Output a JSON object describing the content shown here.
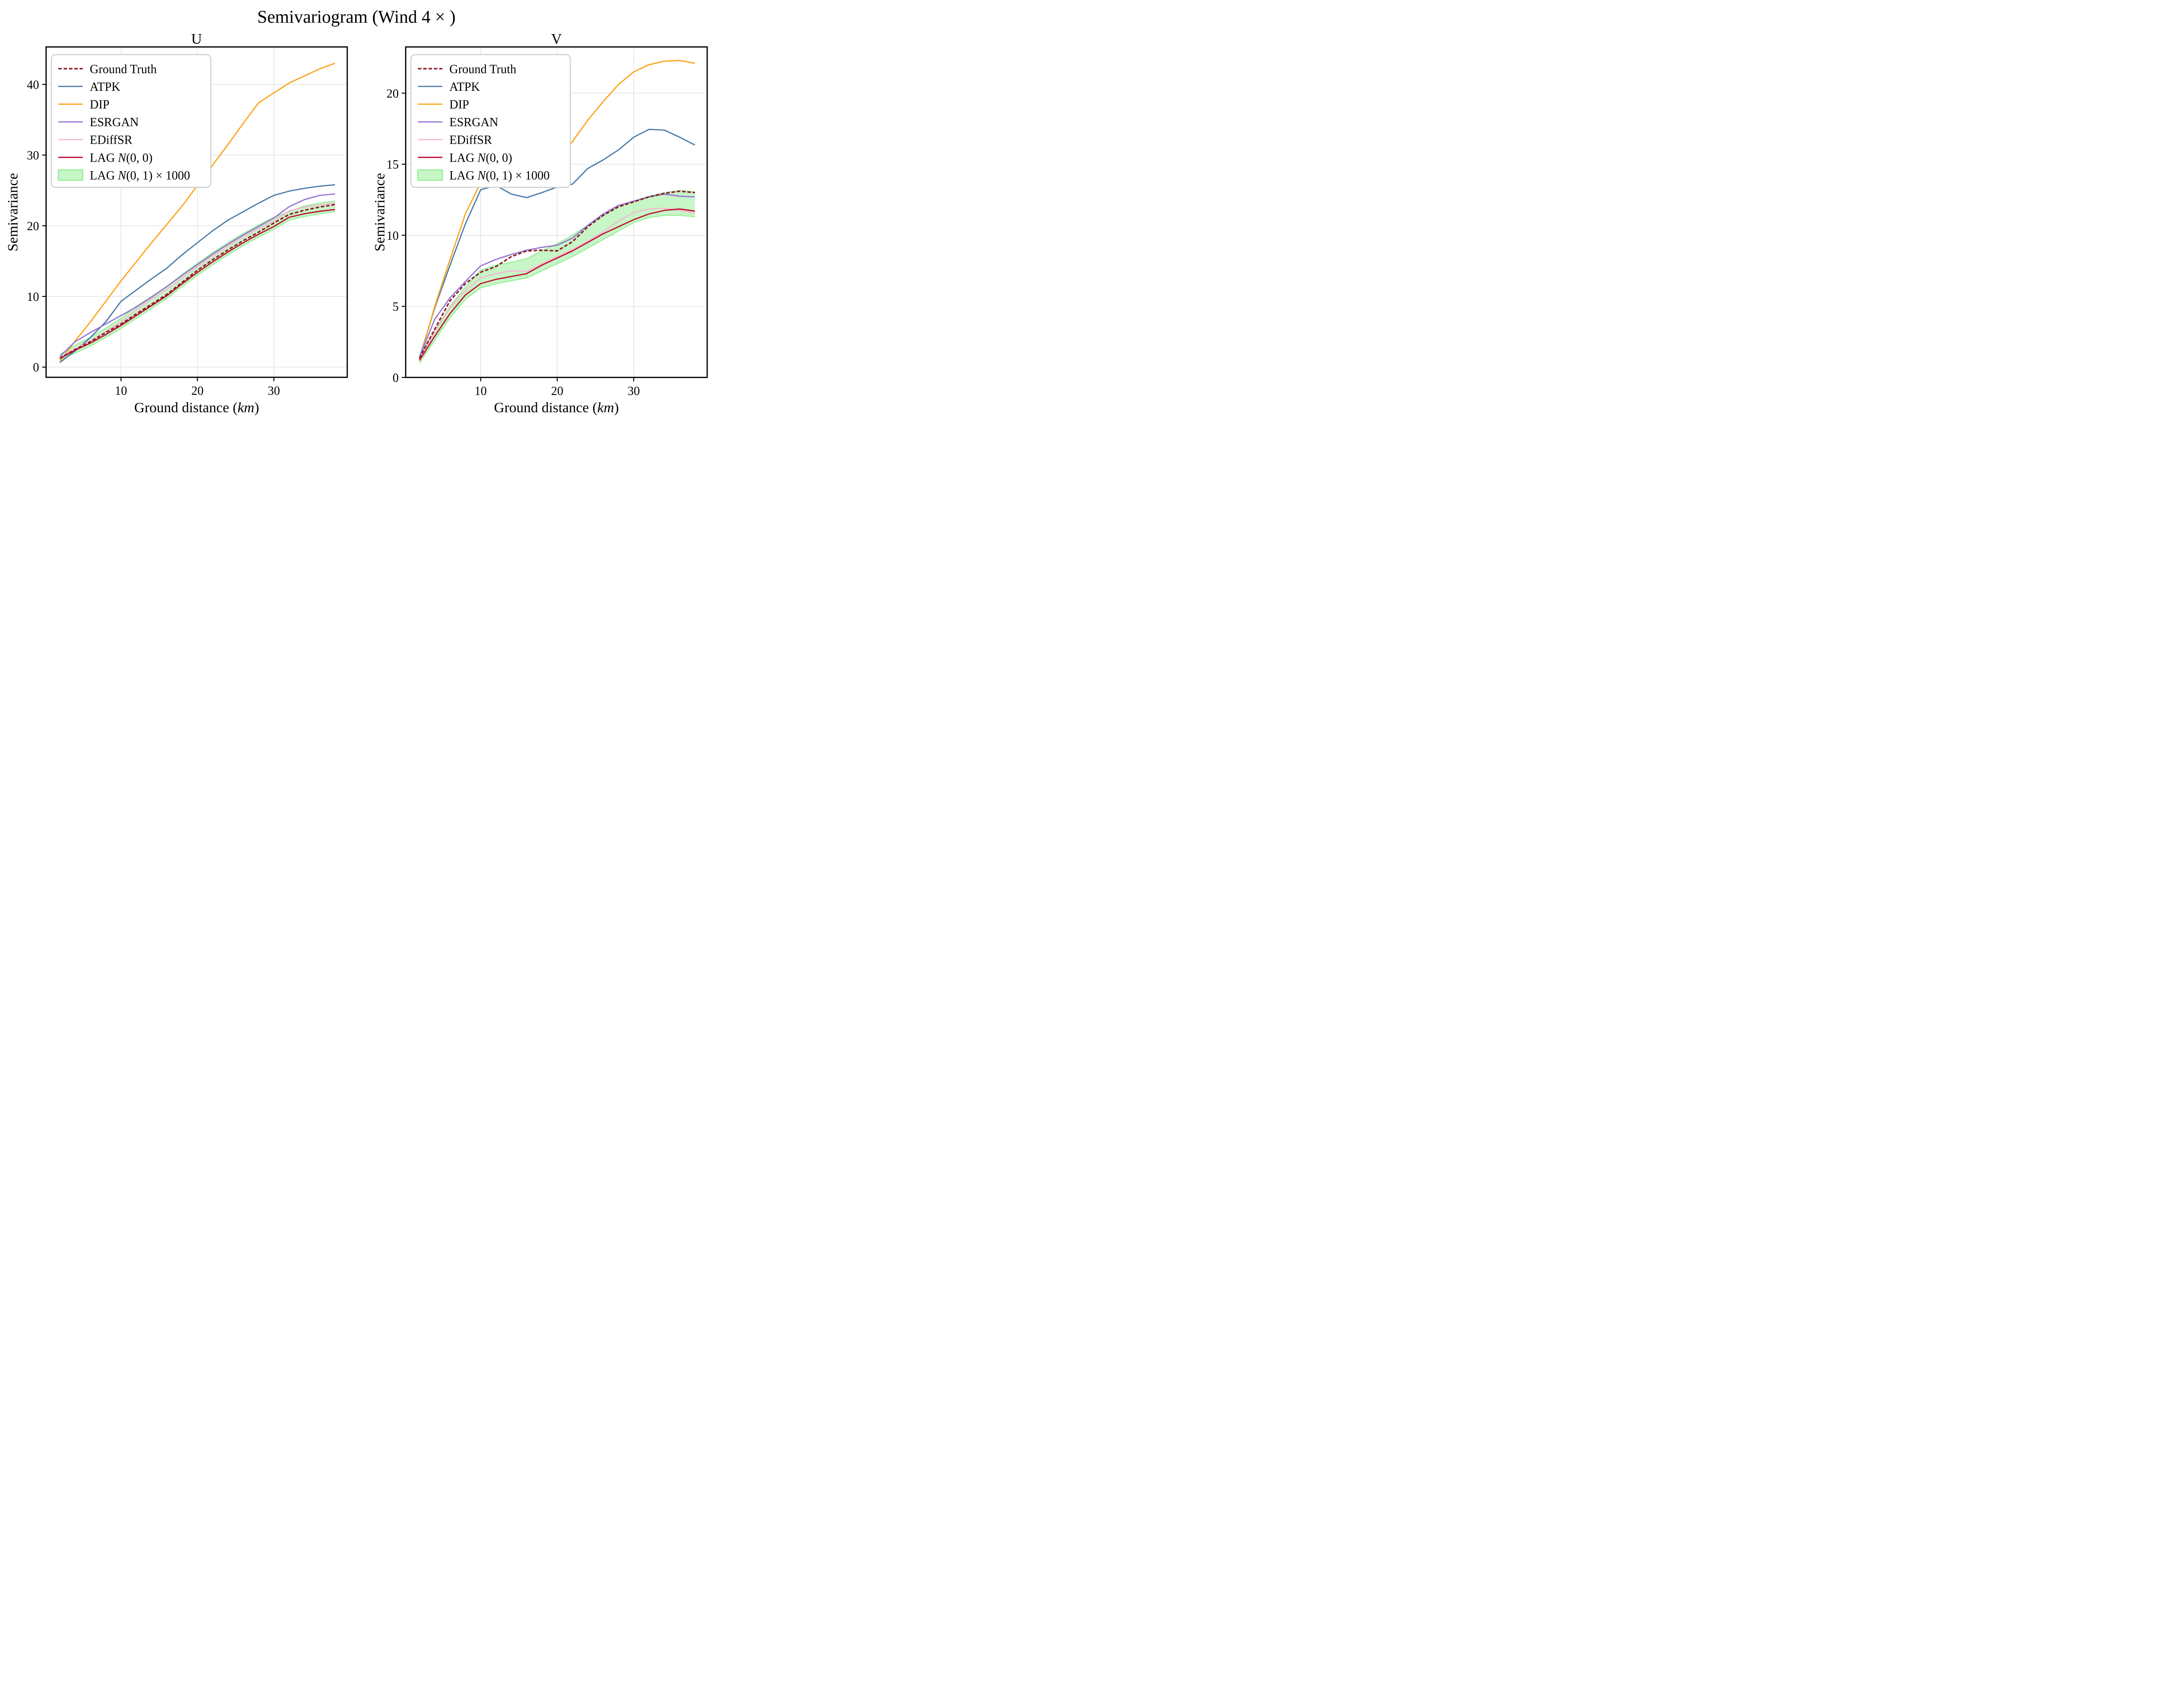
{
  "figure": {
    "suptitle": "Semivariogram (Wind 4 × )",
    "background": "#ffffff",
    "axis_color": "#000000",
    "grid_color": "#d9d9d9",
    "legend_border_color": "#cfcfcf"
  },
  "legend": {
    "position": "upper left",
    "entries": [
      {
        "label": "Ground Truth",
        "parts": [
          [
            "Ground Truth",
            false
          ]
        ],
        "type": "line",
        "dashed": true,
        "color": "#8b1a2b"
      },
      {
        "label": "ATPK",
        "parts": [
          [
            "ATPK",
            false
          ]
        ],
        "type": "line",
        "dashed": false,
        "color": "#4a7bab"
      },
      {
        "label": "DIP",
        "parts": [
          [
            "DIP",
            false
          ]
        ],
        "type": "line",
        "dashed": false,
        "color": "#ffa318"
      },
      {
        "label": "ESRGAN",
        "parts": [
          [
            "ESRGAN",
            false
          ]
        ],
        "type": "line",
        "dashed": false,
        "color": "#9672d4"
      },
      {
        "label": "EDiffSR",
        "parts": [
          [
            "EDiffSR",
            false
          ]
        ],
        "type": "line",
        "dashed": false,
        "color": "#f7b8d4"
      },
      {
        "label": "LAG N(0, 0)",
        "parts": [
          [
            "LAG ",
            false
          ],
          [
            "N",
            true
          ],
          [
            "(0, 0)",
            false
          ]
        ],
        "type": "line",
        "dashed": false,
        "color": "#bf0f30"
      },
      {
        "label": "LAG N(0, 1) × 1000",
        "parts": [
          [
            "LAG ",
            false
          ],
          [
            "N",
            true
          ],
          [
            "(0, 1) × 1000",
            false
          ]
        ],
        "type": "patch",
        "dashed": false,
        "color": "#90ee90"
      }
    ]
  },
  "chart_data": [
    {
      "type": "line",
      "title": "U",
      "xlabel": "Ground distance (km)",
      "xlabel_parts": [
        [
          "Ground distance (",
          false
        ],
        [
          "km",
          true
        ],
        [
          ")",
          false
        ]
      ],
      "ylabel": "Semivariance",
      "xlim": [
        0.2,
        39.6
      ],
      "ylim": [
        -1.44,
        45.3
      ],
      "xticks": [
        10,
        20,
        30
      ],
      "yticks": [
        0,
        10,
        20,
        30,
        40
      ],
      "grid": true,
      "x": [
        2,
        4,
        6,
        8,
        10,
        12,
        14,
        16,
        18,
        20,
        22,
        24,
        26,
        28,
        30,
        32,
        34,
        36,
        38
      ],
      "series": [
        {
          "name": "Ground Truth",
          "color": "#8b1a2b",
          "dashed": true,
          "values": [
            1.25,
            2.5,
            3.6,
            4.9,
            6.1,
            7.55,
            8.9,
            10.3,
            12.0,
            13.7,
            15.2,
            16.6,
            17.9,
            19.1,
            20.4,
            21.6,
            22.2,
            22.65,
            23.0
          ]
        },
        {
          "name": "ATPK",
          "color": "#4a7bab",
          "dashed": false,
          "values": [
            0.65,
            2.3,
            4.2,
            6.4,
            9.3,
            10.9,
            12.5,
            14.0,
            15.9,
            17.6,
            19.3,
            20.8,
            22.0,
            23.2,
            24.3,
            24.9,
            25.3,
            25.6,
            25.8
          ]
        },
        {
          "name": "DIP",
          "color": "#ffa318",
          "dashed": false,
          "values": [
            0.8,
            3.7,
            6.4,
            9.3,
            12.2,
            14.9,
            17.6,
            20.2,
            22.8,
            25.7,
            28.6,
            31.5,
            34.5,
            37.4,
            38.8,
            40.2,
            41.2,
            42.2,
            43.0
          ]
        },
        {
          "name": "ESRGAN",
          "color": "#9672d4",
          "dashed": false,
          "values": [
            1.5,
            3.6,
            4.9,
            6.1,
            7.3,
            8.5,
            9.9,
            11.4,
            13.0,
            14.5,
            16.0,
            17.4,
            18.7,
            19.9,
            21.1,
            22.7,
            23.7,
            24.3,
            24.5
          ]
        },
        {
          "name": "EDiffSR",
          "color": "#f7b8d4",
          "dashed": false,
          "values": [
            1.35,
            2.6,
            3.7,
            5.0,
            6.4,
            8.1,
            9.6,
            11.0,
            12.6,
            14.2,
            15.7,
            17.1,
            18.4,
            19.6,
            20.7,
            22.1,
            22.6,
            22.95,
            23.2
          ]
        },
        {
          "name": "LAG N(0, 0)",
          "color": "#bf0f30",
          "dashed": false,
          "values": [
            1.2,
            2.4,
            3.4,
            4.6,
            5.9,
            7.3,
            8.7,
            10.1,
            11.8,
            13.4,
            14.9,
            16.3,
            17.6,
            18.8,
            19.9,
            21.2,
            21.7,
            22.05,
            22.3
          ]
        }
      ],
      "band": {
        "name": "LAG N(0, 1) × 1000",
        "fill": "#90ee90",
        "fill_opacity": 0.5,
        "edge": "#90ee90",
        "upper": [
          1.8,
          3.1,
          4.2,
          5.5,
          6.9,
          8.6,
          10.0,
          11.4,
          13.1,
          14.7,
          16.2,
          17.6,
          18.9,
          20.1,
          21.2,
          22.0,
          22.8,
          23.2,
          23.5
        ],
        "lower": [
          1.0,
          2.0,
          3.0,
          4.2,
          5.5,
          6.9,
          8.3,
          9.7,
          11.4,
          13.0,
          14.5,
          15.9,
          17.2,
          18.4,
          19.5,
          20.8,
          21.3,
          21.7,
          22.0
        ]
      }
    },
    {
      "type": "line",
      "title": "V",
      "xlabel": "Ground distance (km)",
      "xlabel_parts": [
        [
          "Ground distance (",
          false
        ],
        [
          "km",
          true
        ],
        [
          ")",
          false
        ]
      ],
      "ylabel": "Semivariance",
      "xlim": [
        0.2,
        39.6
      ],
      "ylim": [
        0,
        23.25
      ],
      "xticks": [
        10,
        20,
        30
      ],
      "yticks": [
        0,
        5,
        10,
        15,
        20
      ],
      "grid": true,
      "x": [
        2,
        4,
        6,
        8,
        10,
        12,
        14,
        16,
        18,
        20,
        22,
        24,
        26,
        28,
        30,
        32,
        34,
        36,
        38
      ],
      "series": [
        {
          "name": "Ground Truth",
          "color": "#8b1a2b",
          "dashed": true,
          "values": [
            1.35,
            3.4,
            5.4,
            6.6,
            7.4,
            7.8,
            8.5,
            8.9,
            8.95,
            8.9,
            9.55,
            10.6,
            11.4,
            12.0,
            12.35,
            12.7,
            12.95,
            13.1,
            13.0
          ]
        },
        {
          "name": "ATPK",
          "color": "#4a7bab",
          "dashed": false,
          "values": [
            1.35,
            4.9,
            7.9,
            10.8,
            13.2,
            13.5,
            12.9,
            12.65,
            13.0,
            13.4,
            13.6,
            14.7,
            15.3,
            16.0,
            16.9,
            17.45,
            17.4,
            16.9,
            16.35
          ]
        },
        {
          "name": "DIP",
          "color": "#ffa318",
          "dashed": false,
          "values": [
            1.2,
            5.0,
            8.3,
            11.5,
            13.7,
            14.2,
            14.45,
            14.7,
            15.0,
            15.3,
            16.6,
            18.1,
            19.4,
            20.6,
            21.5,
            22.0,
            22.25,
            22.3,
            22.1
          ]
        },
        {
          "name": "ESRGAN",
          "color": "#9672d4",
          "dashed": false,
          "values": [
            1.4,
            4.1,
            5.6,
            6.75,
            7.85,
            8.3,
            8.65,
            8.95,
            9.15,
            9.3,
            9.8,
            10.7,
            11.5,
            12.1,
            12.4,
            12.7,
            12.9,
            12.75,
            12.7
          ]
        },
        {
          "name": "EDiffSR",
          "color": "#f7b8d4",
          "dashed": false,
          "values": [
            1.3,
            3.2,
            4.9,
            6.1,
            7.0,
            7.3,
            7.5,
            7.45,
            8.0,
            8.5,
            9.0,
            9.6,
            10.2,
            11.0,
            11.6,
            11.85,
            11.9,
            11.75,
            11.55
          ]
        },
        {
          "name": "LAG N(0, 0)",
          "color": "#bf0f30",
          "dashed": false,
          "values": [
            1.2,
            2.9,
            4.5,
            5.8,
            6.6,
            6.9,
            7.1,
            7.3,
            7.9,
            8.4,
            8.9,
            9.5,
            10.1,
            10.6,
            11.1,
            11.5,
            11.75,
            11.85,
            11.7
          ]
        }
      ],
      "band": {
        "name": "LAG N(0, 1) × 1000",
        "fill": "#90ee90",
        "fill_opacity": 0.5,
        "edge": "#90ee90",
        "upper": [
          1.55,
          3.3,
          5.0,
          6.35,
          7.55,
          7.9,
          8.1,
          8.35,
          8.9,
          9.4,
          10.0,
          10.7,
          11.35,
          12.1,
          12.4,
          12.75,
          13.0,
          13.15,
          13.05
        ],
        "lower": [
          1.0,
          2.6,
          4.2,
          5.5,
          6.3,
          6.6,
          6.8,
          7.0,
          7.5,
          8.0,
          8.5,
          9.1,
          9.7,
          10.3,
          10.9,
          11.25,
          11.4,
          11.4,
          11.3
        ]
      }
    }
  ]
}
